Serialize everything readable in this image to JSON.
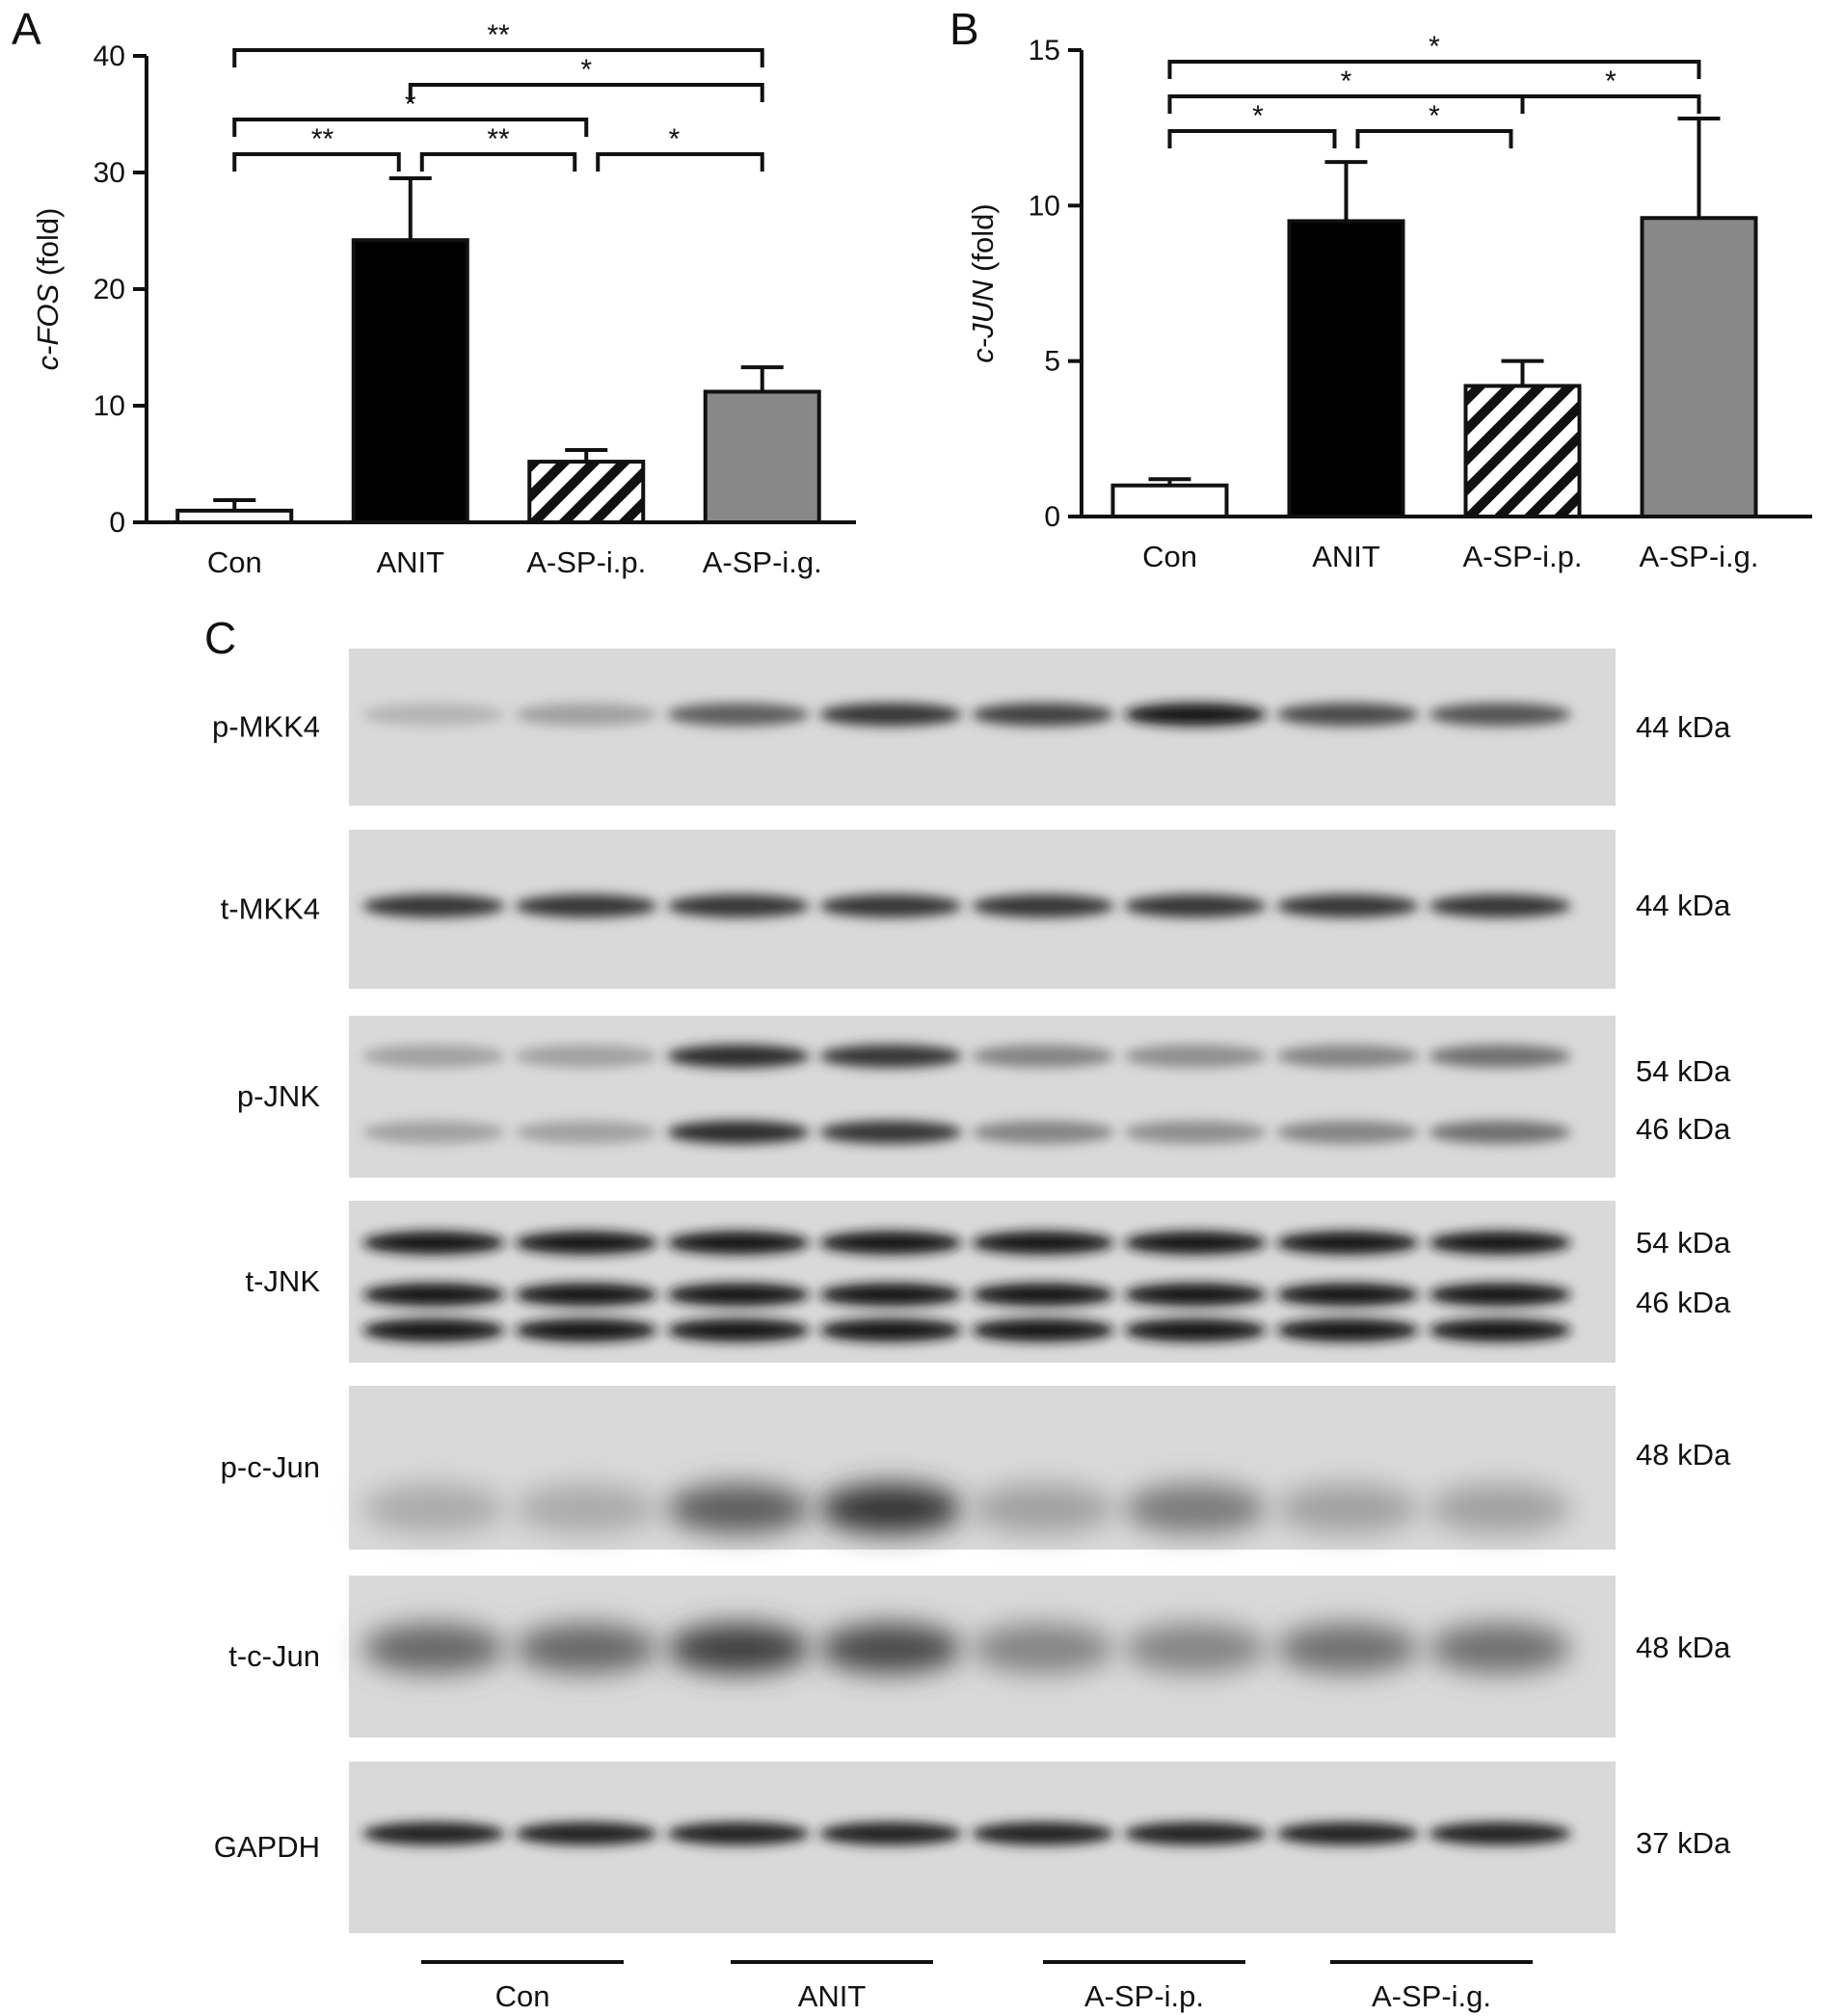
{
  "panels": {
    "a_letter": "A",
    "b_letter": "B",
    "c_letter": "C"
  },
  "chart_data": [
    {
      "type": "bar",
      "panel": "A",
      "categories": [
        "Con",
        "ANIT",
        "A-SP-i.p.",
        "A-SP-i.g."
      ],
      "values": [
        1.0,
        24.2,
        5.2,
        11.2
      ],
      "errors": [
        0.9,
        5.3,
        1.0,
        2.1
      ],
      "fills": [
        "white",
        "black",
        "hatched",
        "gray"
      ],
      "ylabel": "c-FOS (fold)",
      "ylabel_italic": "c-FOS",
      "ylabel_rest": " (fold)",
      "ylim": [
        0,
        40
      ],
      "yticks": [
        0,
        10,
        20,
        30,
        40
      ],
      "comparisons": [
        {
          "a": 0,
          "b": 3,
          "label": "**",
          "level": 4
        },
        {
          "a": 1,
          "b": 3,
          "label": "*",
          "level": 3
        },
        {
          "a": 0,
          "b": 2,
          "label": "*",
          "level": 2
        },
        {
          "a": 0,
          "b": 1,
          "label": "**",
          "level": 1
        },
        {
          "a": 1,
          "b": 2,
          "label": "**",
          "level": 1
        },
        {
          "a": 2,
          "b": 3,
          "label": "*",
          "level": 1
        }
      ]
    },
    {
      "type": "bar",
      "panel": "B",
      "categories": [
        "Con",
        "ANIT",
        "A-SP-i.p.",
        "A-SP-i.g."
      ],
      "values": [
        1.0,
        9.5,
        4.2,
        9.6
      ],
      "errors": [
        0.2,
        1.9,
        0.8,
        3.2
      ],
      "fills": [
        "white",
        "black",
        "hatched",
        "gray"
      ],
      "ylabel": "c-JUN (fold)",
      "ylabel_italic": "c-JUN",
      "ylabel_rest": " (fold)",
      "ylim": [
        0,
        15
      ],
      "yticks": [
        0,
        5,
        10,
        15
      ],
      "comparisons": [
        {
          "a": 0,
          "b": 3,
          "label": "*",
          "level": 3
        },
        {
          "a": 0,
          "b": 2,
          "label": "*",
          "level": 2
        },
        {
          "a": 2,
          "b": 3,
          "label": "*",
          "level": 2
        },
        {
          "a": 0,
          "b": 1,
          "label": "*",
          "level": 1
        },
        {
          "a": 1,
          "b": 2,
          "label": "*",
          "level": 1
        }
      ]
    }
  ],
  "blots": [
    {
      "label": "p-MKK4",
      "kda": [
        "44 kDa"
      ],
      "intensity": [
        0.1,
        0.2,
        0.55,
        0.75,
        0.7,
        0.9,
        0.65,
        0.6
      ]
    },
    {
      "label": "t-MKK4",
      "kda": [
        "44 kDa"
      ],
      "intensity": [
        0.75,
        0.75,
        0.75,
        0.75,
        0.75,
        0.75,
        0.75,
        0.75
      ]
    },
    {
      "label": "p-JNK",
      "kda": [
        "54 kDa",
        "46 kDa"
      ],
      "intensity": [
        0.2,
        0.2,
        0.8,
        0.75,
        0.35,
        0.3,
        0.35,
        0.45
      ]
    },
    {
      "label": "t-JNK",
      "kda": [
        "54 kDa",
        "46 kDa"
      ],
      "intensity": [
        0.9,
        0.9,
        0.9,
        0.9,
        0.9,
        0.9,
        0.9,
        0.9
      ]
    },
    {
      "label": "p-c-Jun",
      "kda": [
        "48 kDa"
      ],
      "intensity": [
        0.15,
        0.15,
        0.55,
        0.75,
        0.2,
        0.4,
        0.2,
        0.2
      ]
    },
    {
      "label": "t-c-Jun",
      "kda": [
        "48 kDa"
      ],
      "intensity": [
        0.5,
        0.5,
        0.7,
        0.65,
        0.35,
        0.35,
        0.45,
        0.45
      ]
    },
    {
      "label": "GAPDH",
      "kda": [
        "37 kDa"
      ],
      "intensity": [
        0.85,
        0.85,
        0.85,
        0.85,
        0.85,
        0.85,
        0.85,
        0.85
      ]
    }
  ],
  "blot_groups": [
    "Con",
    "ANIT",
    "A-SP-i.p.",
    "A-SP-i.g."
  ]
}
